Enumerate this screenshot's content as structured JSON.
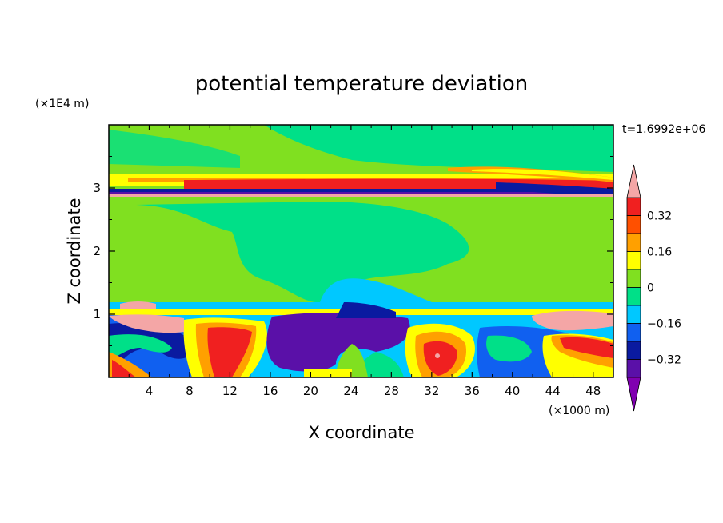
{
  "chart_data": {
    "type": "heatmap",
    "title": "potential temperature deviation",
    "time_label": "t=1.6992e+06",
    "xlabel": "X coordinate",
    "ylabel": "Z coordinate",
    "x_unit_label": "(×1000 m)",
    "y_unit_label": "(×1E4 m)",
    "xlim": [
      0,
      50
    ],
    "ylim": [
      0,
      4
    ],
    "x_ticks": [
      4,
      8,
      12,
      16,
      20,
      24,
      28,
      32,
      36,
      40,
      44,
      48
    ],
    "y_ticks": [
      1,
      2,
      3
    ],
    "x_tick_labels": [
      "4",
      "8",
      "12",
      "16",
      "20",
      "24",
      "28",
      "32",
      "36",
      "40",
      "44",
      "48"
    ],
    "y_tick_labels": [
      "1",
      "2",
      "3"
    ],
    "colorbar": {
      "levels": [
        -0.4,
        -0.32,
        -0.24,
        -0.16,
        -0.08,
        0,
        0.08,
        0.16,
        0.24,
        0.32,
        0.4
      ],
      "tick_labels": [
        "0.32",
        "0.16",
        "0",
        "−0.16",
        "−0.32"
      ],
      "colors": [
        "#8000b0",
        "#5a10a8",
        "#0a1aa0",
        "#1060f0",
        "#00c8ff",
        "#00e088",
        "#80e020",
        "#ffff00",
        "#ffa000",
        "#ff5000",
        "#f02020",
        "#f4a6a6"
      ]
    }
  }
}
